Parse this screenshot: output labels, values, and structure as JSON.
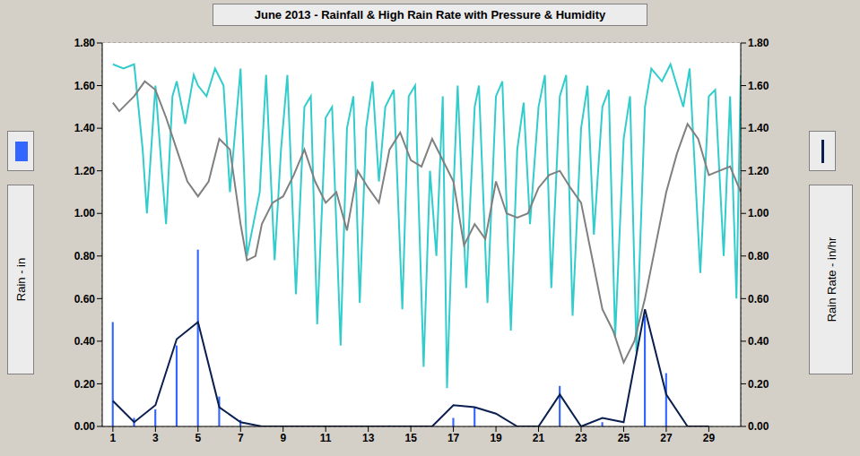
{
  "chart_data": {
    "type": "bar",
    "title": "June 2013 - Rainfall & High Rain Rate with Pressure & Humidity",
    "x": [
      1,
      2,
      3,
      4,
      5,
      6,
      7,
      8,
      9,
      10,
      11,
      12,
      13,
      14,
      15,
      16,
      17,
      18,
      19,
      20,
      21,
      22,
      23,
      24,
      25,
      26,
      27,
      28,
      29,
      30
    ],
    "xlim": [
      0.5,
      30.5
    ],
    "xticks": [
      1,
      3,
      5,
      7,
      9,
      11,
      13,
      15,
      17,
      19,
      21,
      23,
      25,
      27,
      29
    ],
    "ylim": [
      0,
      1.8
    ],
    "yticks": [
      {
        "value": 0,
        "label": "0.00"
      },
      {
        "value": 0.2,
        "label": "0.20"
      },
      {
        "value": 0.4,
        "label": "0.40"
      },
      {
        "value": 0.6,
        "label": "0.60"
      },
      {
        "value": 0.8,
        "label": "0.80"
      },
      {
        "value": 1.0,
        "label": "1.00"
      },
      {
        "value": 1.2,
        "label": "1.20"
      },
      {
        "value": 1.4,
        "label": "1.40"
      },
      {
        "value": 1.6,
        "label": "1.60"
      },
      {
        "value": 1.8,
        "label": "1.80"
      }
    ],
    "y2lim": [
      0,
      1.8
    ],
    "y2ticks": [
      {
        "value": 0,
        "label": "0.00"
      },
      {
        "value": 0.2,
        "label": "0.20"
      },
      {
        "value": 0.4,
        "label": "0.40"
      },
      {
        "value": 0.6,
        "label": "0.60"
      },
      {
        "value": 0.8,
        "label": "0.80"
      },
      {
        "value": 1.0,
        "label": "1.00"
      },
      {
        "value": 1.2,
        "label": "1.20"
      },
      {
        "value": 1.4,
        "label": "1.40"
      },
      {
        "value": 1.6,
        "label": "1.60"
      },
      {
        "value": 1.8,
        "label": "1.80"
      }
    ],
    "grid": true,
    "series": [
      {
        "type": "line",
        "color": "#33cccc",
        "x": [
          1,
          1.5,
          2,
          2.4,
          2.6,
          2.9,
          3,
          3.3,
          3.5,
          3.8,
          4,
          4.4,
          4.8,
          5,
          5.4,
          5.8,
          6.2,
          6.5,
          6.8,
          7,
          7.3,
          7.6,
          7.9,
          8.2,
          8.6,
          8.9,
          9.2,
          9.6,
          10,
          10.3,
          10.6,
          11,
          11.3,
          11.7,
          12,
          12.3,
          12.6,
          12.9,
          13.2,
          13.5,
          13.8,
          14.2,
          14.6,
          14.9,
          15.2,
          15.6,
          15.9,
          16.2,
          16.5,
          16.7,
          17,
          17.2,
          17.6,
          18,
          18.2,
          18.6,
          19,
          19.3,
          19.7,
          20,
          20.3,
          20.6,
          21,
          21.3,
          21.6,
          22,
          22.3,
          22.6,
          23,
          23.3,
          23.6,
          24,
          24.3,
          24.6,
          25,
          25.3,
          25.6,
          26,
          26.3,
          26.8,
          27.2,
          27.5,
          27.8,
          28.1,
          28.6,
          29,
          29.3,
          29.7,
          30,
          30.3,
          30.5
        ],
        "values": [
          1.7,
          1.68,
          1.7,
          1.3,
          1.0,
          1.45,
          1.6,
          1.2,
          0.95,
          1.55,
          1.62,
          1.42,
          1.65,
          1.6,
          1.55,
          1.68,
          1.6,
          1.1,
          1.45,
          1.68,
          0.8,
          0.95,
          1.1,
          1.65,
          0.78,
          1.3,
          1.65,
          0.62,
          1.5,
          1.55,
          0.48,
          1.45,
          1.5,
          0.38,
          1.4,
          1.55,
          0.58,
          1.4,
          1.62,
          1.15,
          1.5,
          1.58,
          0.55,
          1.55,
          1.6,
          0.28,
          1.2,
          0.8,
          1.55,
          0.18,
          1.1,
          1.6,
          0.65,
          1.5,
          1.6,
          0.58,
          1.55,
          1.62,
          0.45,
          1.3,
          1.52,
          0.95,
          1.5,
          1.65,
          0.65,
          1.55,
          1.65,
          0.52,
          1.4,
          1.6,
          0.9,
          1.5,
          1.58,
          0.42,
          1.35,
          1.55,
          0.35,
          1.5,
          1.68,
          1.62,
          1.7,
          1.6,
          1.5,
          1.68,
          0.72,
          1.55,
          1.58,
          0.8,
          1.55,
          0.6,
          1.65
        ]
      },
      {
        "type": "line",
        "color": "#808080",
        "x": [
          1,
          1.3,
          2,
          2.5,
          3,
          3.5,
          4,
          4.5,
          5,
          5.5,
          6,
          6.5,
          7,
          7.3,
          7.7,
          8,
          8.5,
          9,
          9.5,
          10,
          10.5,
          11,
          11.5,
          12,
          12.5,
          13,
          13.5,
          14,
          14.5,
          15,
          15.5,
          16,
          16.5,
          17,
          17.5,
          18,
          18.5,
          19,
          19.5,
          20,
          20.5,
          21,
          21.5,
          22,
          22.5,
          23,
          23.5,
          24,
          24.5,
          25,
          25.5,
          26,
          26.5,
          27,
          27.5,
          28,
          28.5,
          29,
          29.5,
          30,
          30.5
        ],
        "values": [
          1.52,
          1.48,
          1.55,
          1.62,
          1.58,
          1.45,
          1.3,
          1.15,
          1.08,
          1.15,
          1.35,
          1.3,
          0.95,
          0.78,
          0.8,
          0.95,
          1.05,
          1.08,
          1.18,
          1.3,
          1.15,
          1.05,
          1.1,
          0.92,
          1.2,
          1.12,
          1.05,
          1.3,
          1.38,
          1.25,
          1.22,
          1.35,
          1.25,
          1.15,
          0.85,
          0.95,
          0.88,
          1.15,
          1.0,
          0.98,
          1.0,
          1.12,
          1.18,
          1.2,
          1.12,
          1.05,
          0.8,
          0.55,
          0.45,
          0.3,
          0.4,
          0.6,
          0.85,
          1.1,
          1.28,
          1.42,
          1.35,
          1.18,
          1.2,
          1.22,
          1.1
        ]
      },
      {
        "name": "Rain - in",
        "type": "bar",
        "color": "#3366ff",
        "values": [
          0.49,
          0.04,
          0.08,
          0.38,
          0.83,
          0.14,
          0.03,
          0,
          0,
          0,
          0,
          0,
          0,
          0.005,
          0.005,
          0,
          0.04,
          0.09,
          0,
          0,
          0,
          0.19,
          0,
          0.02,
          0,
          0.52,
          0.25,
          0,
          0,
          0
        ]
      },
      {
        "name": "Rain Rate - in/hr",
        "type": "line",
        "axis": "y2",
        "color": "#0a1f4f",
        "values": [
          0.12,
          0.02,
          0.1,
          0.41,
          0.49,
          0.09,
          0.02,
          0,
          0,
          0,
          0,
          0,
          0,
          0,
          0,
          0,
          0.1,
          0.09,
          0.06,
          0,
          0,
          0.15,
          0,
          0.04,
          0.02,
          0.55,
          0.15,
          0,
          0,
          null
        ]
      }
    ]
  }
}
